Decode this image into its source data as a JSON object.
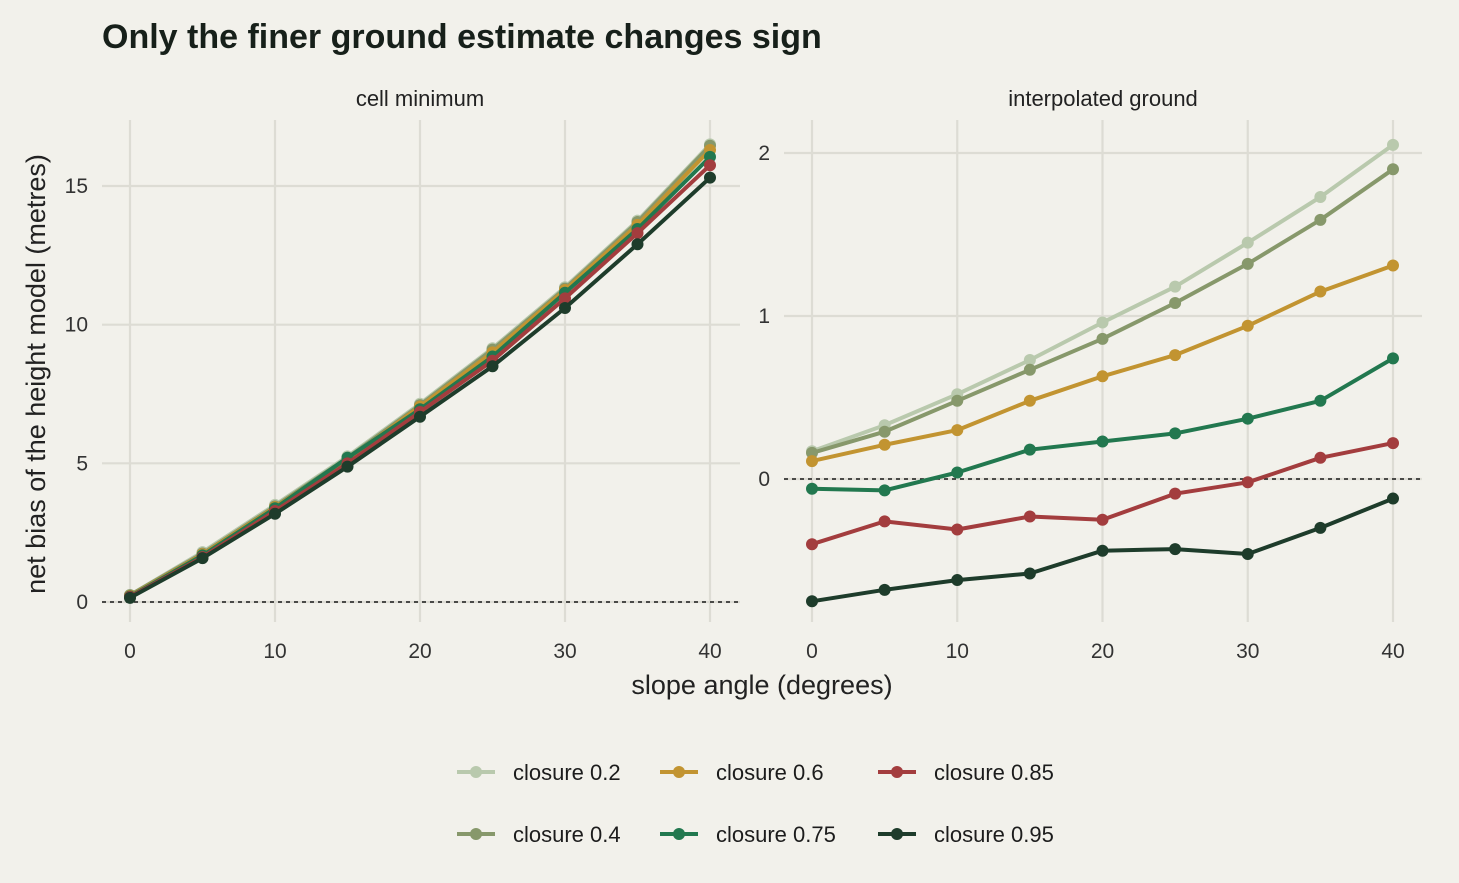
{
  "chart_data": {
    "type": "line",
    "title": "Only the finer ground estimate changes sign",
    "xlabel": "slope angle (degrees)",
    "ylabel": "net bias of the height model (metres)",
    "x": [
      0,
      5,
      10,
      15,
      20,
      25,
      30,
      35,
      40
    ],
    "grid": true,
    "legend_position": "bottom",
    "colors": {
      "closure 0.2": "#b9c9ad",
      "closure 0.4": "#87986b",
      "closure 0.6": "#c29431",
      "closure 0.75": "#22784f",
      "closure 0.85": "#a33d3e",
      "closure 0.95": "#1e3c2b"
    },
    "panels": [
      {
        "strip": "cell minimum",
        "xlim": [
          0,
          40
        ],
        "ylim": [
          0,
          16.5
        ],
        "yticks": [
          0,
          5,
          10,
          15
        ],
        "xticks": [
          0,
          10,
          20,
          30,
          40
        ],
        "series": [
          {
            "name": "closure 0.2",
            "values": [
              0.25,
              1.8,
              3.5,
              5.25,
              7.15,
              9.15,
              11.35,
              13.75,
              16.5
            ]
          },
          {
            "name": "closure 0.4",
            "values": [
              0.25,
              1.75,
              3.45,
              5.2,
              7.1,
              9.1,
              11.3,
              13.7,
              16.45
            ]
          },
          {
            "name": "closure 0.6",
            "values": [
              0.22,
              1.72,
              3.42,
              5.15,
              7.05,
              9.0,
              11.25,
              13.6,
              16.3
            ]
          },
          {
            "name": "closure 0.75",
            "values": [
              0.2,
              1.68,
              3.38,
              5.2,
              6.95,
              8.85,
              11.15,
              13.45,
              16.05
            ]
          },
          {
            "name": "closure 0.85",
            "values": [
              0.18,
              1.62,
              3.28,
              5.0,
              6.85,
              8.7,
              10.95,
              13.3,
              15.75
            ]
          },
          {
            "name": "closure 0.95",
            "values": [
              0.15,
              1.58,
              3.18,
              4.88,
              6.68,
              8.5,
              10.6,
              12.9,
              15.3
            ]
          }
        ]
      },
      {
        "strip": "interpolated ground",
        "xlim": [
          0,
          40
        ],
        "ylim": [
          -0.75,
          2.05
        ],
        "yticks": [
          0,
          1,
          2
        ],
        "xticks": [
          0,
          10,
          20,
          30,
          40
        ],
        "series": [
          {
            "name": "closure 0.2",
            "values": [
              0.17,
              0.33,
              0.52,
              0.73,
              0.96,
              1.18,
              1.45,
              1.73,
              2.05
            ]
          },
          {
            "name": "closure 0.4",
            "values": [
              0.16,
              0.29,
              0.48,
              0.67,
              0.86,
              1.08,
              1.32,
              1.59,
              1.9
            ]
          },
          {
            "name": "closure 0.6",
            "values": [
              0.11,
              0.21,
              0.3,
              0.48,
              0.63,
              0.76,
              0.94,
              1.15,
              1.31
            ]
          },
          {
            "name": "closure 0.75",
            "values": [
              -0.06,
              -0.07,
              0.04,
              0.18,
              0.23,
              0.28,
              0.37,
              0.48,
              0.74
            ]
          },
          {
            "name": "closure 0.85",
            "values": [
              -0.4,
              -0.26,
              -0.31,
              -0.23,
              -0.25,
              -0.09,
              -0.02,
              0.13,
              0.22
            ]
          },
          {
            "name": "closure 0.95",
            "values": [
              -0.75,
              -0.68,
              -0.62,
              -0.58,
              -0.44,
              -0.43,
              -0.46,
              -0.3,
              -0.12
            ]
          }
        ]
      }
    ]
  }
}
